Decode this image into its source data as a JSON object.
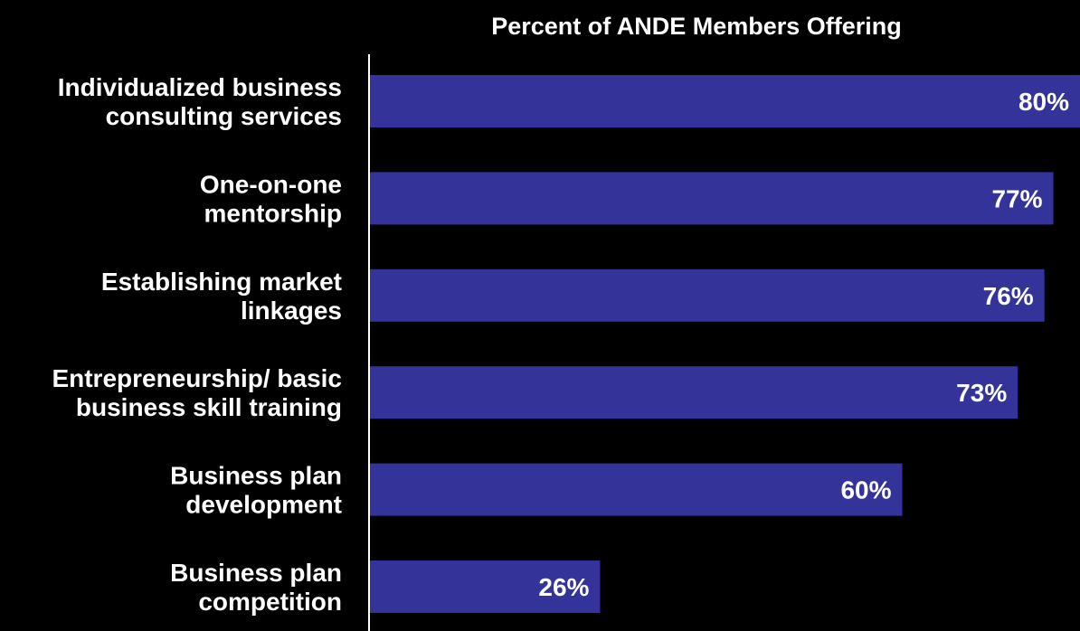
{
  "chart_data": {
    "type": "bar",
    "orientation": "horizontal",
    "title": "Percent of ANDE Members Offering",
    "xlabel": "",
    "ylabel": "",
    "categories": [
      [
        "Individualized business",
        "consulting services"
      ],
      [
        "One-on-one",
        "mentorship"
      ],
      [
        "Establishing market",
        "linkages"
      ],
      [
        "Entrepreneurship/ basic",
        "business skill training"
      ],
      [
        "Business plan",
        "development"
      ],
      [
        "Business plan",
        "competition"
      ]
    ],
    "values": [
      80,
      77,
      76,
      73,
      60,
      26
    ],
    "value_labels": [
      "80%",
      "77%",
      "76%",
      "73%",
      "60%",
      "26%"
    ],
    "xlim": [
      0,
      80
    ],
    "grid": false,
    "legend": "none",
    "colors": {
      "bar": "#333399",
      "background": "#000000",
      "text": "#ffffff",
      "axis": "#ffffff"
    }
  }
}
